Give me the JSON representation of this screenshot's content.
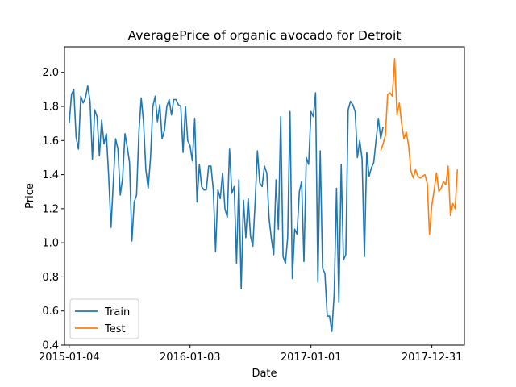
{
  "chart_data": {
    "type": "line",
    "title": "AveragePrice of organic avocado for Detroit",
    "xlabel": "Date",
    "ylabel": "Price",
    "ylim": [
      0.4,
      2.15
    ],
    "xlim": [
      "2014-12-21",
      "2018-04-08"
    ],
    "y_ticks": [
      0.4,
      0.6,
      0.8,
      1.0,
      1.2,
      1.4,
      1.6,
      1.8,
      2.0
    ],
    "x_ticks": [
      "2015-01-04",
      "2016-01-03",
      "2017-01-01",
      "2017-12-31"
    ],
    "grid": false,
    "legend_position": "lower-left",
    "colors": {
      "Train": "#1f77b4",
      "Test": "#ff7f0e"
    },
    "series": [
      {
        "name": "Train",
        "start_date": "2015-01-04",
        "step_days": 7,
        "values": [
          1.7,
          1.87,
          1.9,
          1.62,
          1.55,
          1.86,
          1.82,
          1.85,
          1.92,
          1.83,
          1.49,
          1.78,
          1.74,
          1.51,
          1.72,
          1.58,
          1.64,
          1.39,
          1.09,
          1.36,
          1.61,
          1.55,
          1.28,
          1.38,
          1.64,
          1.56,
          1.47,
          1.01,
          1.24,
          1.28,
          1.65,
          1.85,
          1.71,
          1.43,
          1.32,
          1.5,
          1.8,
          1.86,
          1.71,
          1.81,
          1.61,
          1.66,
          1.8,
          1.84,
          1.75,
          1.84,
          1.84,
          1.81,
          1.8,
          1.53,
          1.8,
          1.6,
          1.57,
          1.48,
          1.73,
          1.24,
          1.46,
          1.33,
          1.31,
          1.31,
          1.45,
          1.45,
          1.31,
          0.95,
          1.31,
          1.26,
          1.41,
          1.2,
          1.15,
          1.55,
          1.29,
          1.33,
          0.88,
          1.37,
          0.73,
          1.25,
          1.03,
          1.26,
          1.04,
          0.98,
          1.24,
          1.54,
          1.35,
          1.33,
          1.45,
          1.41,
          1.14,
          1.02,
          0.93,
          1.37,
          1.08,
          1.74,
          0.92,
          0.88,
          1.03,
          1.77,
          0.79,
          1.08,
          1.05,
          1.3,
          1.36,
          0.89,
          1.5,
          1.46,
          1.77,
          1.74,
          1.88,
          0.77,
          1.54,
          0.85,
          0.82,
          0.57,
          0.57,
          0.48,
          0.7,
          1.32,
          0.65,
          1.46,
          0.9,
          0.93,
          1.78,
          1.83,
          1.81,
          1.77,
          1.5,
          1.6,
          1.49,
          0.92,
          1.53,
          1.39,
          1.44,
          1.47,
          1.6,
          1.73,
          1.61,
          1.68
        ]
      },
      {
        "name": "Test",
        "start_date": "2017-07-30",
        "step_days": 7,
        "values": [
          1.54,
          1.58,
          1.63,
          1.87,
          1.88,
          1.86,
          2.08,
          1.75,
          1.82,
          1.7,
          1.61,
          1.65,
          1.57,
          1.42,
          1.38,
          1.43,
          1.39,
          1.38,
          1.39,
          1.4,
          1.35,
          1.05,
          1.22,
          1.31,
          1.41,
          1.3,
          1.32,
          1.36,
          1.34,
          1.45,
          1.16,
          1.23,
          1.2,
          1.43
        ]
      }
    ]
  }
}
